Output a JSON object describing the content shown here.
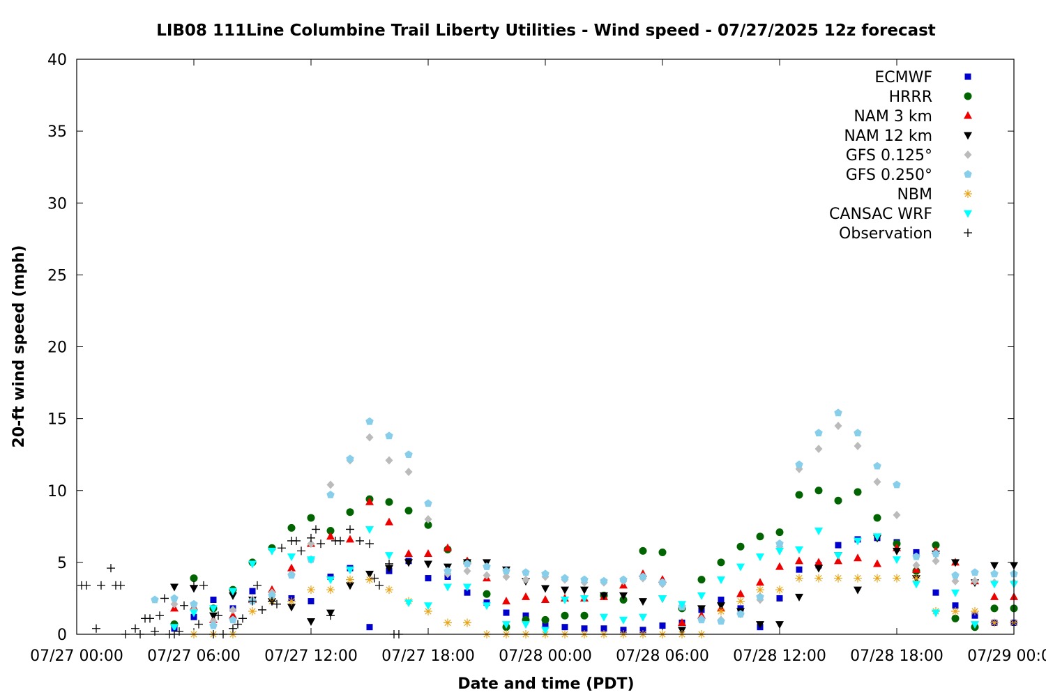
{
  "chart_data": {
    "type": "scatter",
    "title": "LIB08 111Line Columbine Trail Liberty Utilities - Wind speed - 07/27/2025 12z forecast",
    "xlabel": "Date and time (PDT)",
    "ylabel": "20-ft wind speed (mph)",
    "x_unit": "hour",
    "xlim": [
      0,
      48
    ],
    "ylim": [
      0,
      40
    ],
    "xticks": [
      {
        "x": 0,
        "label": "07/27 00:00"
      },
      {
        "x": 6,
        "label": "07/27 06:00"
      },
      {
        "x": 12,
        "label": "07/27 12:00"
      },
      {
        "x": 18,
        "label": "07/27 18:00"
      },
      {
        "x": 24,
        "label": "07/28 00:00"
      },
      {
        "x": 30,
        "label": "07/28 06:00"
      },
      {
        "x": 36,
        "label": "07/28 12:00"
      },
      {
        "x": 42,
        "label": "07/28 18:00"
      },
      {
        "x": 48,
        "label": "07/29 00:00"
      }
    ],
    "yticks": [
      0,
      5,
      10,
      15,
      20,
      25,
      30,
      35,
      40
    ],
    "legend_position": "top-right",
    "series": [
      {
        "name": "ECMWF",
        "color": "#0000cc",
        "marker": "square",
        "x": [
          5,
          6,
          7,
          8,
          9,
          10,
          11,
          12,
          13,
          14,
          15,
          16,
          17,
          18,
          19,
          20,
          21,
          22,
          23,
          24,
          25,
          26,
          27,
          28,
          29,
          30,
          31,
          32,
          33,
          34,
          35,
          36,
          37,
          38,
          39,
          40,
          41,
          42,
          43,
          44,
          45,
          46,
          47,
          48
        ],
        "y": [
          0.4,
          1.2,
          2.4,
          1.8,
          3.0,
          2.8,
          2.5,
          2.3,
          4.0,
          4.6,
          0.5,
          4.4,
          5.1,
          3.9,
          4.0,
          2.9,
          2.2,
          1.5,
          1.3,
          0.6,
          0.5,
          0.4,
          0.4,
          0.3,
          0.3,
          0.6,
          0.8,
          1.7,
          2.4,
          1.8,
          0.5,
          2.5,
          4.5,
          4.8,
          6.2,
          6.6,
          6.7,
          6.4,
          5.7,
          2.9,
          2.0,
          1.3,
          0.8,
          0.8
        ]
      },
      {
        "name": "HRRR",
        "color": "#006400",
        "marker": "circle",
        "x": [
          5,
          6,
          7,
          8,
          9,
          10,
          11,
          12,
          13,
          14,
          15,
          16,
          17,
          18,
          19,
          20,
          21,
          22,
          23,
          24,
          25,
          26,
          27,
          28,
          29,
          30,
          31,
          32,
          33,
          34,
          35,
          36,
          37,
          38,
          39,
          40,
          41,
          42,
          43,
          44,
          45,
          46,
          47,
          48
        ],
        "y": [
          0.7,
          3.9,
          1.8,
          3.1,
          5.0,
          6.0,
          7.4,
          8.1,
          7.2,
          8.5,
          9.4,
          9.2,
          8.6,
          7.6,
          5.9,
          5.0,
          2.8,
          0.5,
          1.0,
          1.0,
          1.3,
          1.3,
          2.7,
          2.4,
          5.8,
          5.7,
          1.8,
          3.8,
          5.0,
          6.1,
          6.8,
          7.1,
          9.7,
          10.0,
          9.3,
          9.9,
          8.1,
          6.3,
          4.4,
          6.2,
          1.1,
          0.5,
          1.8,
          1.8
        ]
      },
      {
        "name": "NAM 3 km",
        "color": "#ee0000",
        "marker": "triangle-up",
        "x": [
          5,
          6,
          7,
          8,
          9,
          10,
          11,
          12,
          13,
          14,
          15,
          16,
          17,
          18,
          19,
          20,
          21,
          22,
          23,
          24,
          25,
          26,
          27,
          28,
          29,
          30,
          31,
          32,
          33,
          34,
          35,
          36,
          37,
          38,
          39,
          40,
          41,
          42,
          43,
          44,
          45,
          46,
          47,
          48
        ],
        "y": [
          1.8,
          1.9,
          1.0,
          1.3,
          2.4,
          3.1,
          4.6,
          6.3,
          6.8,
          6.6,
          9.2,
          7.8,
          5.6,
          5.6,
          6.0,
          5.1,
          3.9,
          2.3,
          2.6,
          2.4,
          2.5,
          2.5,
          2.6,
          3.4,
          4.2,
          3.8,
          0.8,
          1.3,
          1.8,
          2.8,
          3.6,
          4.7,
          5.1,
          5.0,
          5.1,
          5.3,
          4.9,
          6.0,
          4.5,
          5.8,
          5.0,
          3.7,
          2.6,
          2.6
        ]
      },
      {
        "name": "NAM 12 km",
        "color": "#000000",
        "marker": "triangle-down",
        "x": [
          5,
          6,
          7,
          8,
          9,
          10,
          11,
          12,
          13,
          14,
          15,
          16,
          17,
          18,
          19,
          20,
          21,
          22,
          23,
          24,
          25,
          26,
          27,
          28,
          29,
          30,
          31,
          32,
          33,
          34,
          35,
          36,
          37,
          38,
          39,
          40,
          41,
          42,
          43,
          44,
          45,
          46,
          47,
          48
        ],
        "y": [
          3.3,
          3.2,
          1.3,
          2.7,
          2.4,
          2.3,
          1.9,
          0.9,
          1.5,
          3.4,
          4.2,
          4.6,
          5.0,
          4.9,
          4.7,
          5.0,
          5.0,
          4.5,
          3.7,
          3.2,
          3.1,
          3.1,
          2.7,
          2.7,
          2.3,
          2.5,
          0.3,
          1.8,
          2.0,
          1.6,
          0.7,
          0.7,
          2.6,
          4.6,
          5.5,
          3.1,
          6.7,
          5.8,
          3.9,
          5.6,
          5.0,
          3.6,
          4.8,
          4.8
        ]
      },
      {
        "name": "GFS 0.125°",
        "color": "#bbbbbb",
        "marker": "diamond",
        "x": [
          5,
          6,
          7,
          8,
          9,
          10,
          11,
          12,
          13,
          14,
          15,
          16,
          17,
          18,
          19,
          20,
          21,
          22,
          23,
          24,
          25,
          26,
          27,
          28,
          29,
          30,
          31,
          32,
          33,
          34,
          35,
          36,
          37,
          38,
          39,
          40,
          41,
          42,
          43,
          44,
          45,
          46,
          47,
          48
        ],
        "y": [
          2.1,
          1.7,
          0.9,
          1.7,
          2.4,
          2.9,
          4.2,
          6.3,
          10.4,
          12.1,
          13.7,
          12.1,
          11.3,
          8.0,
          4.2,
          4.4,
          4.1,
          4.0,
          3.8,
          4.0,
          3.8,
          3.6,
          3.6,
          3.7,
          3.9,
          3.5,
          2.0,
          1.1,
          1.0,
          1.4,
          2.4,
          6.1,
          11.5,
          12.9,
          14.5,
          13.1,
          10.6,
          8.3,
          4.8,
          5.1,
          3.7,
          3.7,
          3.6,
          3.6
        ]
      },
      {
        "name": "GFS 0.250°",
        "color": "#87ceeb",
        "marker": "pentagon",
        "x": [
          4,
          5,
          6,
          7,
          8,
          9,
          10,
          11,
          12,
          13,
          14,
          15,
          16,
          17,
          18,
          19,
          20,
          21,
          22,
          23,
          24,
          25,
          26,
          27,
          28,
          29,
          30,
          31,
          32,
          33,
          34,
          35,
          36,
          37,
          38,
          39,
          40,
          41,
          42,
          43,
          44,
          45,
          46,
          47,
          48
        ],
        "y": [
          2.4,
          2.5,
          2.1,
          0.6,
          1.0,
          2.3,
          2.7,
          4.1,
          5.2,
          9.7,
          12.2,
          14.8,
          13.8,
          12.5,
          9.1,
          4.4,
          4.9,
          4.7,
          4.4,
          4.3,
          4.2,
          3.9,
          3.8,
          3.7,
          3.8,
          4.0,
          3.6,
          1.9,
          1.0,
          0.9,
          1.4,
          2.6,
          6.3,
          11.8,
          14.0,
          15.4,
          14.0,
          11.7,
          10.4,
          5.4,
          5.6,
          4.1,
          4.3,
          4.2,
          4.2
        ]
      },
      {
        "name": "NBM",
        "color": "#e8a317",
        "marker": "asterisk",
        "x": [
          6,
          7,
          8,
          9,
          10,
          11,
          12,
          13,
          14,
          15,
          16,
          17,
          18,
          19,
          20,
          21,
          22,
          23,
          24,
          25,
          26,
          27,
          28,
          29,
          30,
          31,
          32,
          33,
          34,
          35,
          36,
          37,
          38,
          39,
          40,
          41,
          42,
          43,
          44,
          45,
          46,
          47,
          48
        ],
        "y": [
          0,
          0,
          0,
          1.6,
          2.3,
          2.3,
          3.1,
          3.1,
          3.8,
          3.8,
          3.1,
          2.3,
          1.6,
          0.8,
          0.8,
          0,
          0,
          0,
          0,
          0,
          0,
          0,
          0,
          0,
          0,
          0,
          0,
          1.6,
          2.3,
          3.1,
          3.1,
          3.9,
          3.9,
          3.9,
          3.9,
          3.9,
          3.9,
          3.9,
          1.6,
          1.6,
          1.6,
          0.8,
          0.8
        ]
      },
      {
        "name": "CANSAC WRF",
        "color": "#00ffff",
        "marker": "triangle-down",
        "x": [
          5,
          6,
          7,
          8,
          9,
          10,
          11,
          12,
          13,
          14,
          15,
          16,
          17,
          18,
          19,
          20,
          21,
          22,
          23,
          24,
          25,
          26,
          27,
          28,
          29,
          30,
          31,
          32,
          33,
          34,
          35,
          36,
          37,
          38,
          39,
          40,
          41,
          42,
          43,
          44,
          45,
          46,
          47,
          48
        ],
        "y": [
          0.5,
          1.5,
          1.8,
          3.0,
          4.9,
          5.8,
          5.4,
          5.2,
          3.8,
          4.5,
          7.3,
          5.5,
          2.2,
          2.0,
          3.3,
          3.3,
          2.0,
          0.7,
          0.7,
          0.3,
          2.4,
          2.5,
          1.2,
          1.0,
          1.2,
          2.5,
          2.1,
          2.7,
          3.8,
          4.7,
          5.4,
          5.8,
          5.9,
          7.2,
          5.5,
          6.5,
          6.8,
          5.2,
          3.5,
          1.5,
          2.9,
          0.7,
          3.5,
          3.5
        ]
      },
      {
        "name": "Observation",
        "color": "#000000",
        "marker": "plus",
        "x": [
          0.25,
          0.5,
          1,
          1.25,
          1.75,
          2,
          2.25,
          2.5,
          3,
          3.25,
          3.5,
          3.75,
          4,
          4.25,
          4.5,
          4.75,
          5,
          5.25,
          5.5,
          6,
          6.25,
          6.5,
          7,
          7.25,
          7.5,
          8,
          8.25,
          8.5,
          9,
          9.25,
          9.5,
          10,
          10.25,
          10.5,
          11,
          11.25,
          11.5,
          12,
          12.25,
          12.5,
          13,
          13.25,
          13.5,
          14,
          14.5,
          15,
          15.25,
          15.5,
          16,
          16.25,
          16.5
        ],
        "y": [
          3.4,
          3.4,
          0.4,
          3.4,
          4.6,
          3.4,
          3.4,
          0,
          0.4,
          0,
          1.1,
          1.1,
          0.2,
          1.3,
          2.5,
          0,
          0,
          0.2,
          2.0,
          3.4,
          0.7,
          3.4,
          0,
          1.3,
          0,
          0.4,
          0.7,
          1.1,
          2.3,
          3.4,
          1.7,
          2.3,
          2.1,
          6.0,
          6.5,
          6.5,
          5.8,
          6.7,
          7.3,
          6.3,
          1.3,
          6.5,
          6.5,
          7.3,
          6.5,
          6.3,
          3.9,
          3.4,
          4.9,
          0,
          0
        ]
      }
    ]
  }
}
